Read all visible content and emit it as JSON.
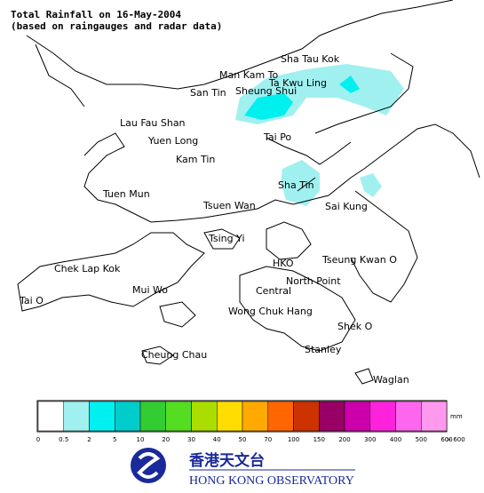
{
  "title": "Total Rainfall on 16-May-2004",
  "subtitle": "(based on raingauges and radar data)",
  "places": [
    "Sha Tau Kok",
    "Man Kam To",
    "Ta Kwu Ling",
    "San Tin",
    "Sheung Shui",
    "Lau Fau Shan",
    "Yuen Long",
    "Tai Po",
    "Kam Tin",
    "Tuen Mun",
    "Sha Tin",
    "Tsuen Wan",
    "Sai Kung",
    "Tsing Yi",
    "Chek Lap Kok",
    "HKO",
    "Tseung Kwan O",
    "North Point",
    "Mui Wo",
    "Central",
    "Tai O",
    "Wong Chuk Hang",
    "Shek O",
    "Stanley",
    "Cheung Chau",
    "Waglan"
  ],
  "legend": {
    "unit": "mm",
    "colors": [
      "#ffffff",
      "#a0f0f0",
      "#00f0f0",
      "#00cccc",
      "#33cc33",
      "#55dd22",
      "#aadd00",
      "#ffdd00",
      "#ffaa00",
      "#ff6600",
      "#cc3300",
      "#990066",
      "#cc00aa",
      "#ff22dd",
      "#ff66ee",
      "#ff99ee",
      "#ffddff"
    ],
    "labels": [
      "0",
      "0.5",
      "2",
      "5",
      "10",
      "20",
      "30",
      "40",
      "50",
      "70",
      "100",
      "150",
      "200",
      "300",
      "400",
      "500",
      "600",
      "> 600"
    ]
  },
  "logo": {
    "name_zh": "香港天文台",
    "name_en": "HONG KONG OBSERVATORY"
  }
}
